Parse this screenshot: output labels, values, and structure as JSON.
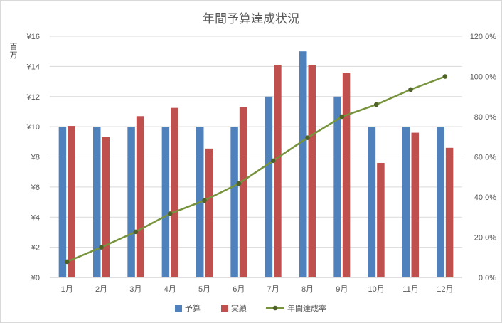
{
  "chart_data": {
    "type": "bar",
    "title": "年間予算達成状況",
    "y_unit_label": "百万",
    "categories": [
      "1月",
      "2月",
      "3月",
      "4月",
      "5月",
      "6月",
      "7月",
      "8月",
      "9月",
      "10月",
      "11月",
      "12月"
    ],
    "series": [
      {
        "name": "予算",
        "type": "bar",
        "axis": "left",
        "color": "#4f81bd",
        "values": [
          10,
          10,
          10,
          10,
          10,
          10,
          12,
          15,
          12,
          10,
          10,
          10
        ]
      },
      {
        "name": "実績",
        "type": "bar",
        "axis": "left",
        "color": "#c0504d",
        "values": [
          10.05,
          9.3,
          10.7,
          11.25,
          8.55,
          11.3,
          14.1,
          14.1,
          13.55,
          7.6,
          9.6,
          8.6
        ]
      },
      {
        "name": "年間達成率",
        "type": "line",
        "axis": "right",
        "color": "#77933c",
        "marker_color": "#4f6228",
        "values": [
          0.078,
          0.15,
          0.227,
          0.317,
          0.383,
          0.467,
          0.581,
          0.695,
          0.8,
          0.86,
          0.935,
          1.0
        ]
      }
    ],
    "y_left": {
      "min": 0,
      "max": 16,
      "step": 2,
      "tick_labels": [
        "¥0",
        "¥2",
        "¥4",
        "¥6",
        "¥8",
        "¥10",
        "¥12",
        "¥14",
        "¥16"
      ]
    },
    "y_right": {
      "min": 0,
      "max": 1.2,
      "step": 0.2,
      "tick_labels": [
        "0.0%",
        "20.0%",
        "40.0%",
        "60.0%",
        "80.0%",
        "100.0%",
        "120.0%"
      ]
    },
    "grid": true,
    "legend_position": "bottom"
  }
}
